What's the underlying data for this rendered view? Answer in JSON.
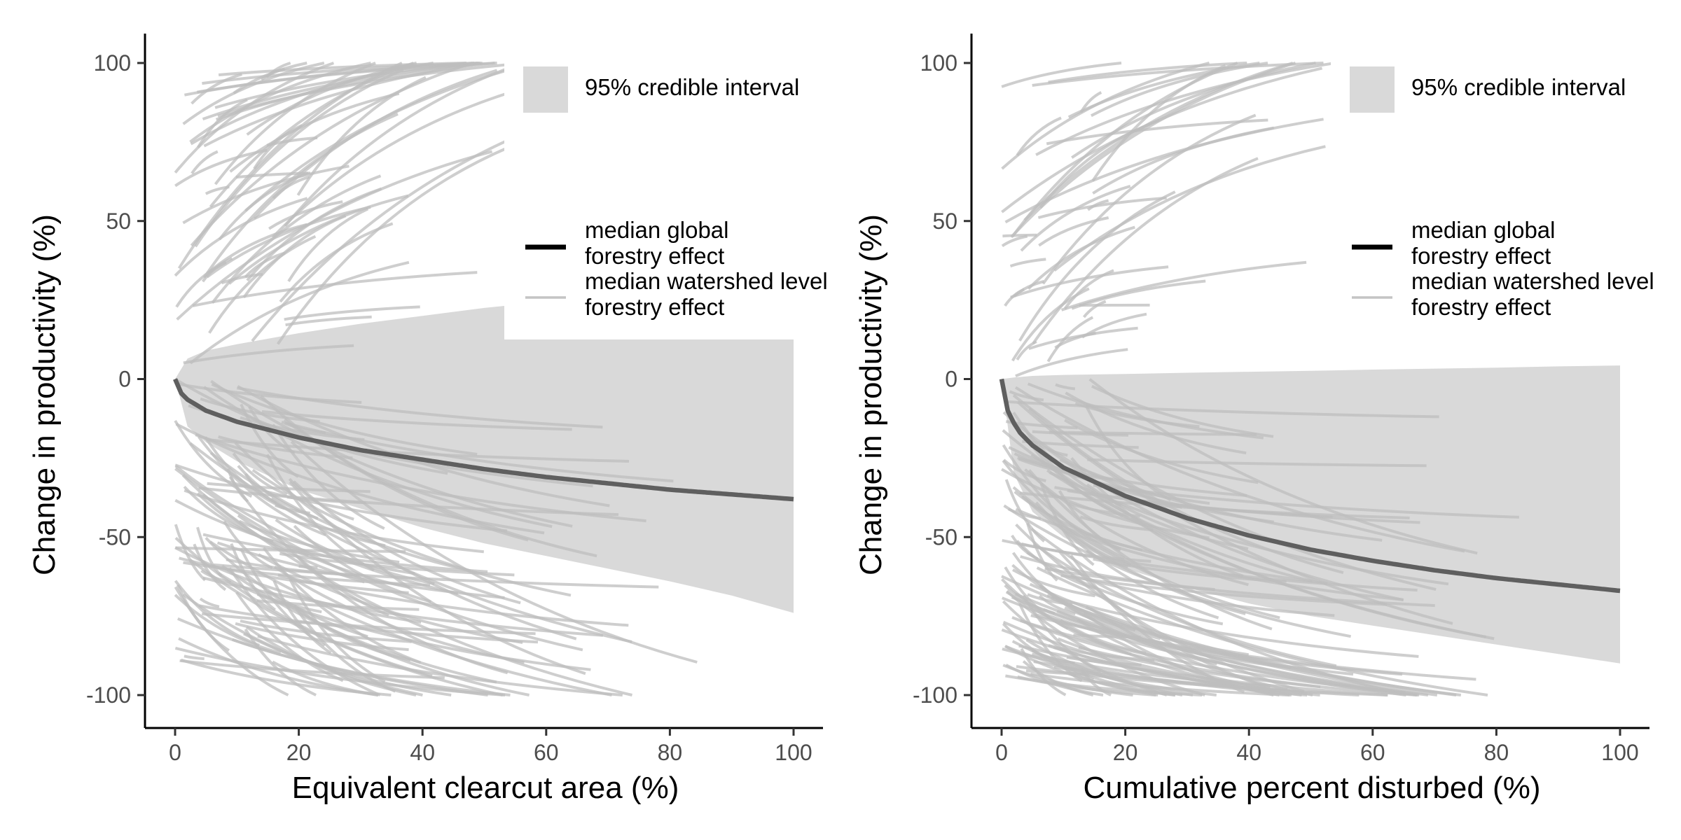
{
  "chart_data": [
    {
      "type": "line",
      "xlabel": "Equivalent clearcut area (%)",
      "ylabel": "Change in productivity (%)",
      "xlim": [
        -5,
        105
      ],
      "ylim": [
        -110,
        110
      ],
      "x_ticks": [
        0,
        20,
        40,
        60,
        80,
        100
      ],
      "y_ticks": [
        100,
        50,
        0,
        -50,
        -100
      ],
      "x_tick_labels": [
        "0",
        "20",
        "40",
        "60",
        "80",
        "100"
      ],
      "y_tick_labels": [
        "100",
        "50",
        "0",
        "-50",
        "-100"
      ],
      "grid": false,
      "legend": {
        "position": "top-right",
        "entries": [
          {
            "label": "95% credible interval",
            "kind": "ribbon",
            "color": "#d9d9d9"
          },
          {
            "label": "median global\n forestry effect",
            "kind": "line",
            "color": "#000000"
          },
          {
            "label": "median watershed level\n forestry effect",
            "kind": "line",
            "color": "#c4c4c4"
          }
        ]
      },
      "global_effect": {
        "color": "#5f5f5f",
        "x": [
          0,
          1,
          2,
          5,
          10,
          20,
          30,
          40,
          50,
          60,
          70,
          80,
          90,
          100
        ],
        "y": [
          0,
          -4.5,
          -6.5,
          -10,
          -13.5,
          -18.5,
          -22.5,
          -25.5,
          -28.5,
          -31,
          -33,
          -35,
          -36.5,
          -38
        ]
      },
      "credible_interval": {
        "color": "#d9d9d9",
        "x": [
          0,
          2,
          5,
          10,
          20,
          30,
          40,
          50,
          60,
          70,
          80,
          90,
          100
        ],
        "upper": [
          0,
          6.5,
          9,
          11,
          14.5,
          17.5,
          20,
          22.5,
          24.5,
          26,
          27.5,
          29,
          30.5
        ],
        "lower": [
          0,
          -15,
          -20,
          -26,
          -35,
          -41,
          -47,
          -52,
          -56,
          -60,
          -64,
          -68.5,
          -74
        ]
      },
      "watershed_effects": {
        "color": "#bdbdbd",
        "count": 180,
        "x_start_max": 20,
        "x_range_max": 95,
        "y_range": [
          -100,
          100
        ]
      }
    },
    {
      "type": "line",
      "xlabel": "Cumulative percent disturbed (%)",
      "ylabel": "Change in productivity (%)",
      "xlim": [
        -5,
        105
      ],
      "ylim": [
        -110,
        110
      ],
      "x_ticks": [
        0,
        20,
        40,
        60,
        80,
        100
      ],
      "y_ticks": [
        100,
        50,
        0,
        -50,
        -100
      ],
      "x_tick_labels": [
        "0",
        "20",
        "40",
        "60",
        "80",
        "100"
      ],
      "y_tick_labels": [
        "100",
        "50",
        "0",
        "-50",
        "-100"
      ],
      "grid": false,
      "legend": {
        "position": "top-right",
        "entries": [
          {
            "label": "95% credible interval",
            "kind": "ribbon",
            "color": "#d9d9d9"
          },
          {
            "label": "median global\n forestry effect",
            "kind": "line",
            "color": "#000000"
          },
          {
            "label": "median watershed level\n forestry effect",
            "kind": "line",
            "color": "#c4c4c4"
          }
        ]
      },
      "global_effect": {
        "color": "#5f5f5f",
        "x": [
          0,
          1,
          2,
          3,
          5,
          10,
          20,
          30,
          40,
          50,
          60,
          70,
          80,
          90,
          100
        ],
        "y": [
          0,
          -10,
          -14,
          -17,
          -21,
          -28,
          -37,
          -44,
          -49.5,
          -54,
          -57.5,
          -60.5,
          -63,
          -65,
          -67
        ]
      },
      "credible_interval": {
        "color": "#d9d9d9",
        "x": [
          0,
          2,
          5,
          10,
          20,
          30,
          40,
          50,
          60,
          70,
          80,
          90,
          100
        ],
        "upper": [
          0,
          0.5,
          1,
          1.3,
          1.6,
          2,
          2.3,
          2.6,
          3,
          3.3,
          3.6,
          4,
          4.3
        ],
        "lower": [
          0,
          -30,
          -42,
          -50,
          -60,
          -66,
          -71,
          -75,
          -78,
          -81,
          -84,
          -87,
          -90
        ]
      },
      "watershed_effects": {
        "color": "#bdbdbd",
        "count": 190,
        "x_start_max": 15,
        "x_range_max": 95,
        "y_range": [
          -100,
          100
        ]
      }
    }
  ]
}
